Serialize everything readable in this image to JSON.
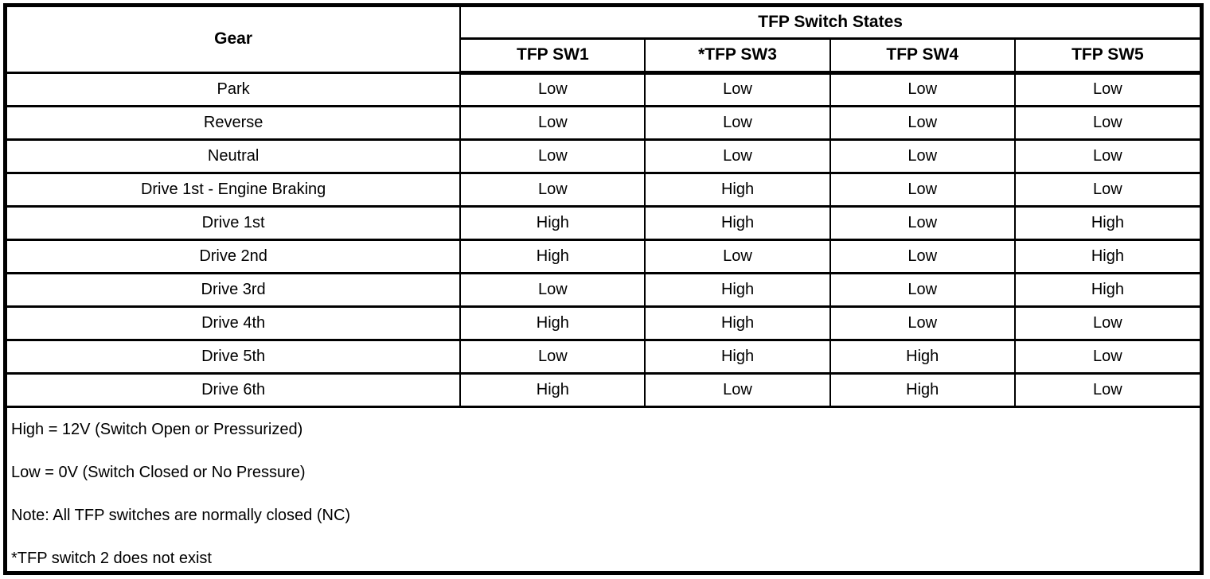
{
  "colors": {
    "background": "#ffffff",
    "border": "#000000",
    "text": "#000000"
  },
  "table": {
    "group_header": "TFP Switch States",
    "gear_header": "Gear",
    "columns": [
      "TFP SW1",
      "*TFP SW3",
      "TFP SW4",
      "TFP SW5"
    ],
    "rows": [
      {
        "gear": "Park",
        "values": [
          "Low",
          "Low",
          "Low",
          "Low"
        ]
      },
      {
        "gear": "Reverse",
        "values": [
          "Low",
          "Low",
          "Low",
          "Low"
        ]
      },
      {
        "gear": "Neutral",
        "values": [
          "Low",
          "Low",
          "Low",
          "Low"
        ]
      },
      {
        "gear": "Drive 1st - Engine Braking",
        "values": [
          "Low",
          "High",
          "Low",
          "Low"
        ]
      },
      {
        "gear": "Drive 1st",
        "values": [
          "High",
          "High",
          "Low",
          "High"
        ]
      },
      {
        "gear": "Drive 2nd",
        "values": [
          "High",
          "Low",
          "Low",
          "High"
        ]
      },
      {
        "gear": "Drive 3rd",
        "values": [
          "Low",
          "High",
          "Low",
          "High"
        ]
      },
      {
        "gear": "Drive 4th",
        "values": [
          "High",
          "High",
          "Low",
          "Low"
        ]
      },
      {
        "gear": "Drive 5th",
        "values": [
          "Low",
          "High",
          "High",
          "Low"
        ]
      },
      {
        "gear": "Drive 6th",
        "values": [
          "High",
          "Low",
          "High",
          "Low"
        ]
      }
    ],
    "notes": [
      "High = 12V (Switch Open or Pressurized)",
      "Low = 0V (Switch Closed or No Pressure)",
      "Note: All TFP switches are normally closed (NC)",
      "*TFP switch 2 does not exist"
    ]
  }
}
